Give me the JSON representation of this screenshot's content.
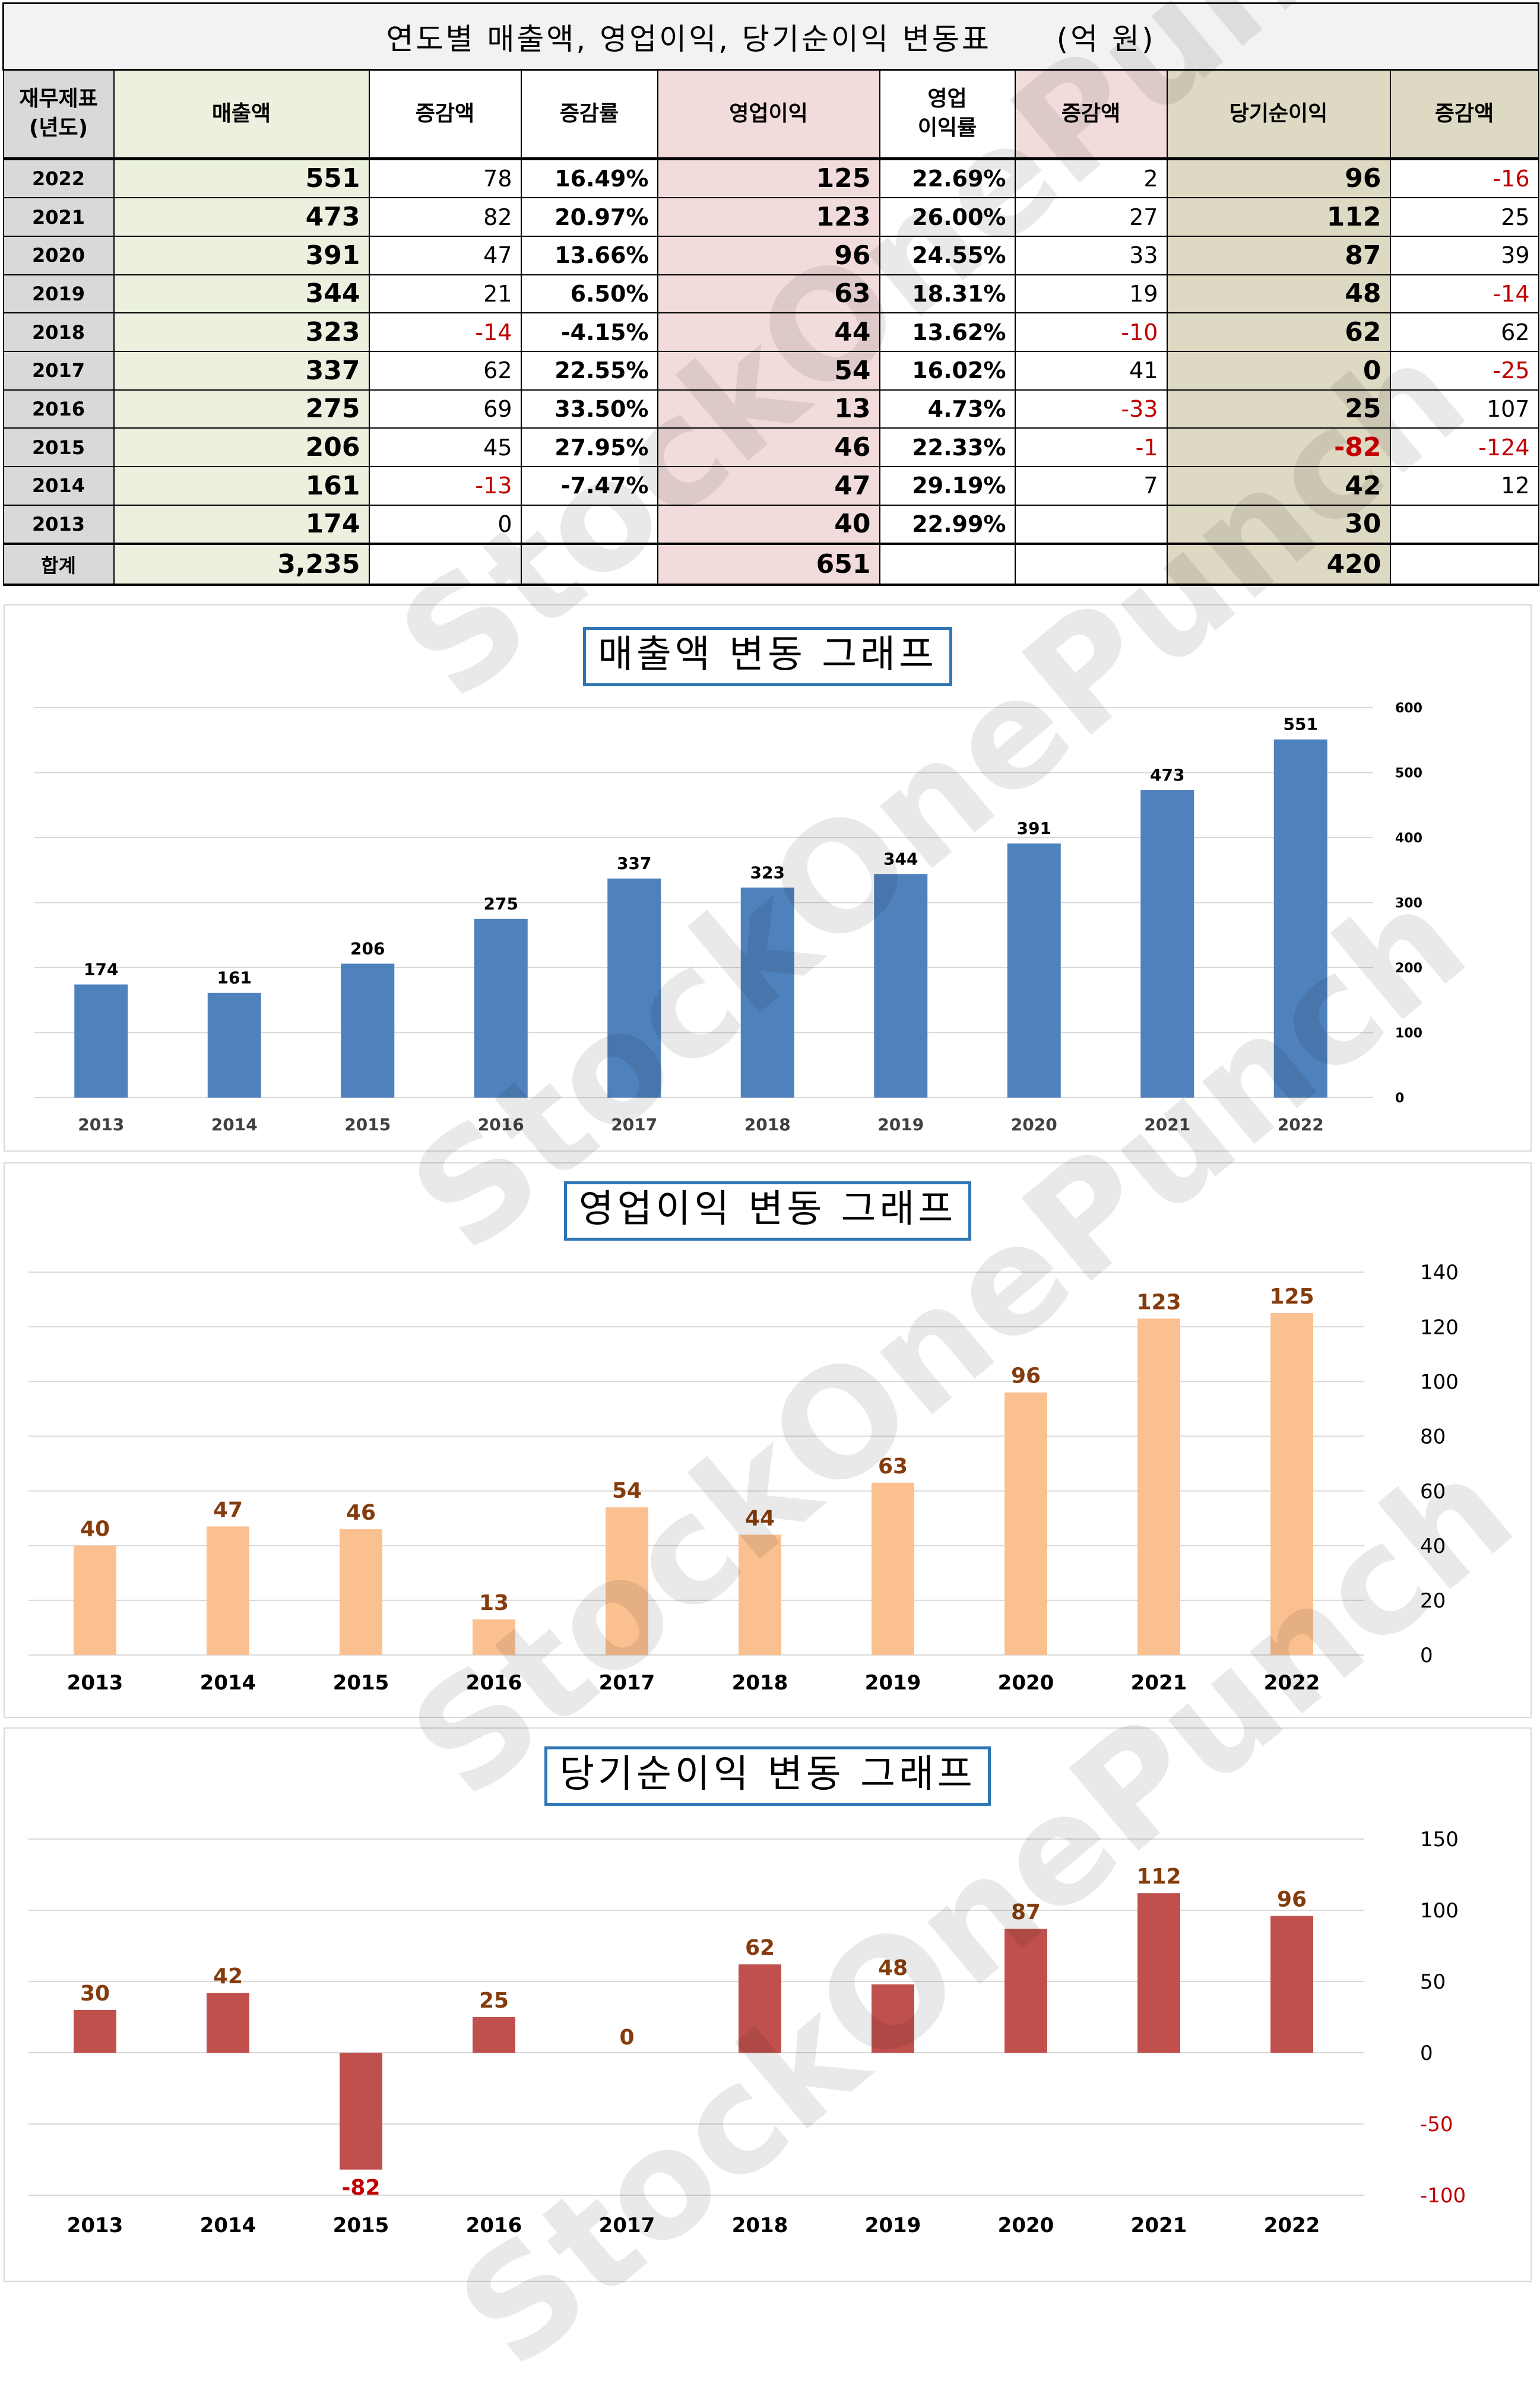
{
  "table": {
    "title": "연도별 매출액, 영업이익, 당기순이익 변동표",
    "unit": "(억 원)",
    "headers": {
      "year": "재무제표\n(년도)",
      "sales": "매출액",
      "sales_change": "증감액",
      "sales_rate": "증감률",
      "op": "영업이익",
      "op_margin": "영업\n이익률",
      "op_change": "증감액",
      "net": "당기순이익",
      "net_change": "증감액"
    },
    "rows": [
      {
        "year": "2022",
        "sales": "551",
        "sales_change": "78",
        "sales_rate": "16.49%",
        "op": "125",
        "op_margin": "22.69%",
        "op_change": "2",
        "net": "96",
        "net_change": "-16"
      },
      {
        "year": "2021",
        "sales": "473",
        "sales_change": "82",
        "sales_rate": "20.97%",
        "op": "123",
        "op_margin": "26.00%",
        "op_change": "27",
        "net": "112",
        "net_change": "25"
      },
      {
        "year": "2020",
        "sales": "391",
        "sales_change": "47",
        "sales_rate": "13.66%",
        "op": "96",
        "op_margin": "24.55%",
        "op_change": "33",
        "net": "87",
        "net_change": "39"
      },
      {
        "year": "2019",
        "sales": "344",
        "sales_change": "21",
        "sales_rate": "6.50%",
        "op": "63",
        "op_margin": "18.31%",
        "op_change": "19",
        "net": "48",
        "net_change": "-14"
      },
      {
        "year": "2018",
        "sales": "323",
        "sales_change": "-14",
        "sales_rate": "-4.15%",
        "op": "44",
        "op_margin": "13.62%",
        "op_change": "-10",
        "net": "62",
        "net_change": "62"
      },
      {
        "year": "2017",
        "sales": "337",
        "sales_change": "62",
        "sales_rate": "22.55%",
        "op": "54",
        "op_margin": "16.02%",
        "op_change": "41",
        "net": "0",
        "net_change": "-25"
      },
      {
        "year": "2016",
        "sales": "275",
        "sales_change": "69",
        "sales_rate": "33.50%",
        "op": "13",
        "op_margin": "4.73%",
        "op_change": "-33",
        "net": "25",
        "net_change": "107"
      },
      {
        "year": "2015",
        "sales": "206",
        "sales_change": "45",
        "sales_rate": "27.95%",
        "op": "46",
        "op_margin": "22.33%",
        "op_change": "-1",
        "net": "-82",
        "net_change": "-124"
      },
      {
        "year": "2014",
        "sales": "161",
        "sales_change": "-13",
        "sales_rate": "-7.47%",
        "op": "47",
        "op_margin": "29.19%",
        "op_change": "7",
        "net": "42",
        "net_change": "12"
      },
      {
        "year": "2013",
        "sales": "174",
        "sales_change": "0",
        "sales_rate": "",
        "op": "40",
        "op_margin": "22.99%",
        "op_change": "",
        "net": "30",
        "net_change": ""
      }
    ],
    "total": {
      "label": "합계",
      "sales": "3,235",
      "op": "651",
      "net": "420"
    }
  },
  "watermark": "StockOnePunch",
  "colors": {
    "sales_bar": "#4f81bd",
    "op_bar": "#fac090",
    "net_bar": "#c0504d",
    "op_label": "#843c0c",
    "negative": "#c00000",
    "title_border": "#2e75b6"
  },
  "chart_data": [
    {
      "type": "bar",
      "title": "매출액 변동 그래프",
      "categories": [
        "2013",
        "2014",
        "2015",
        "2016",
        "2017",
        "2018",
        "2019",
        "2020",
        "2021",
        "2022"
      ],
      "values": [
        174,
        161,
        206,
        275,
        337,
        323,
        344,
        391,
        473,
        551
      ],
      "ylim": [
        0,
        600
      ],
      "yticks": [
        0,
        100,
        200,
        300,
        400,
        500,
        600
      ],
      "yaxis": "right",
      "grid": true,
      "legend": "none",
      "data_labels": true
    },
    {
      "type": "bar",
      "title": "영업이익 변동 그래프",
      "categories": [
        "2013",
        "2014",
        "2015",
        "2016",
        "2017",
        "2018",
        "2019",
        "2020",
        "2021",
        "2022"
      ],
      "values": [
        40,
        47,
        46,
        13,
        54,
        44,
        63,
        96,
        123,
        125
      ],
      "ylim": [
        0,
        140
      ],
      "yticks": [
        0,
        20,
        40,
        60,
        80,
        100,
        120,
        140
      ],
      "yaxis": "right",
      "grid": true,
      "legend": "none",
      "data_labels": true
    },
    {
      "type": "bar",
      "title": "당기순이익 변동 그래프",
      "categories": [
        "2013",
        "2014",
        "2015",
        "2016",
        "2017",
        "2018",
        "2019",
        "2020",
        "2021",
        "2022"
      ],
      "values": [
        30,
        42,
        -82,
        25,
        0,
        62,
        48,
        87,
        112,
        96
      ],
      "ylim": [
        -100,
        150
      ],
      "yticks": [
        -100,
        -50,
        0,
        50,
        100,
        150
      ],
      "yaxis": "right",
      "grid": true,
      "legend": "none",
      "data_labels": true
    }
  ]
}
